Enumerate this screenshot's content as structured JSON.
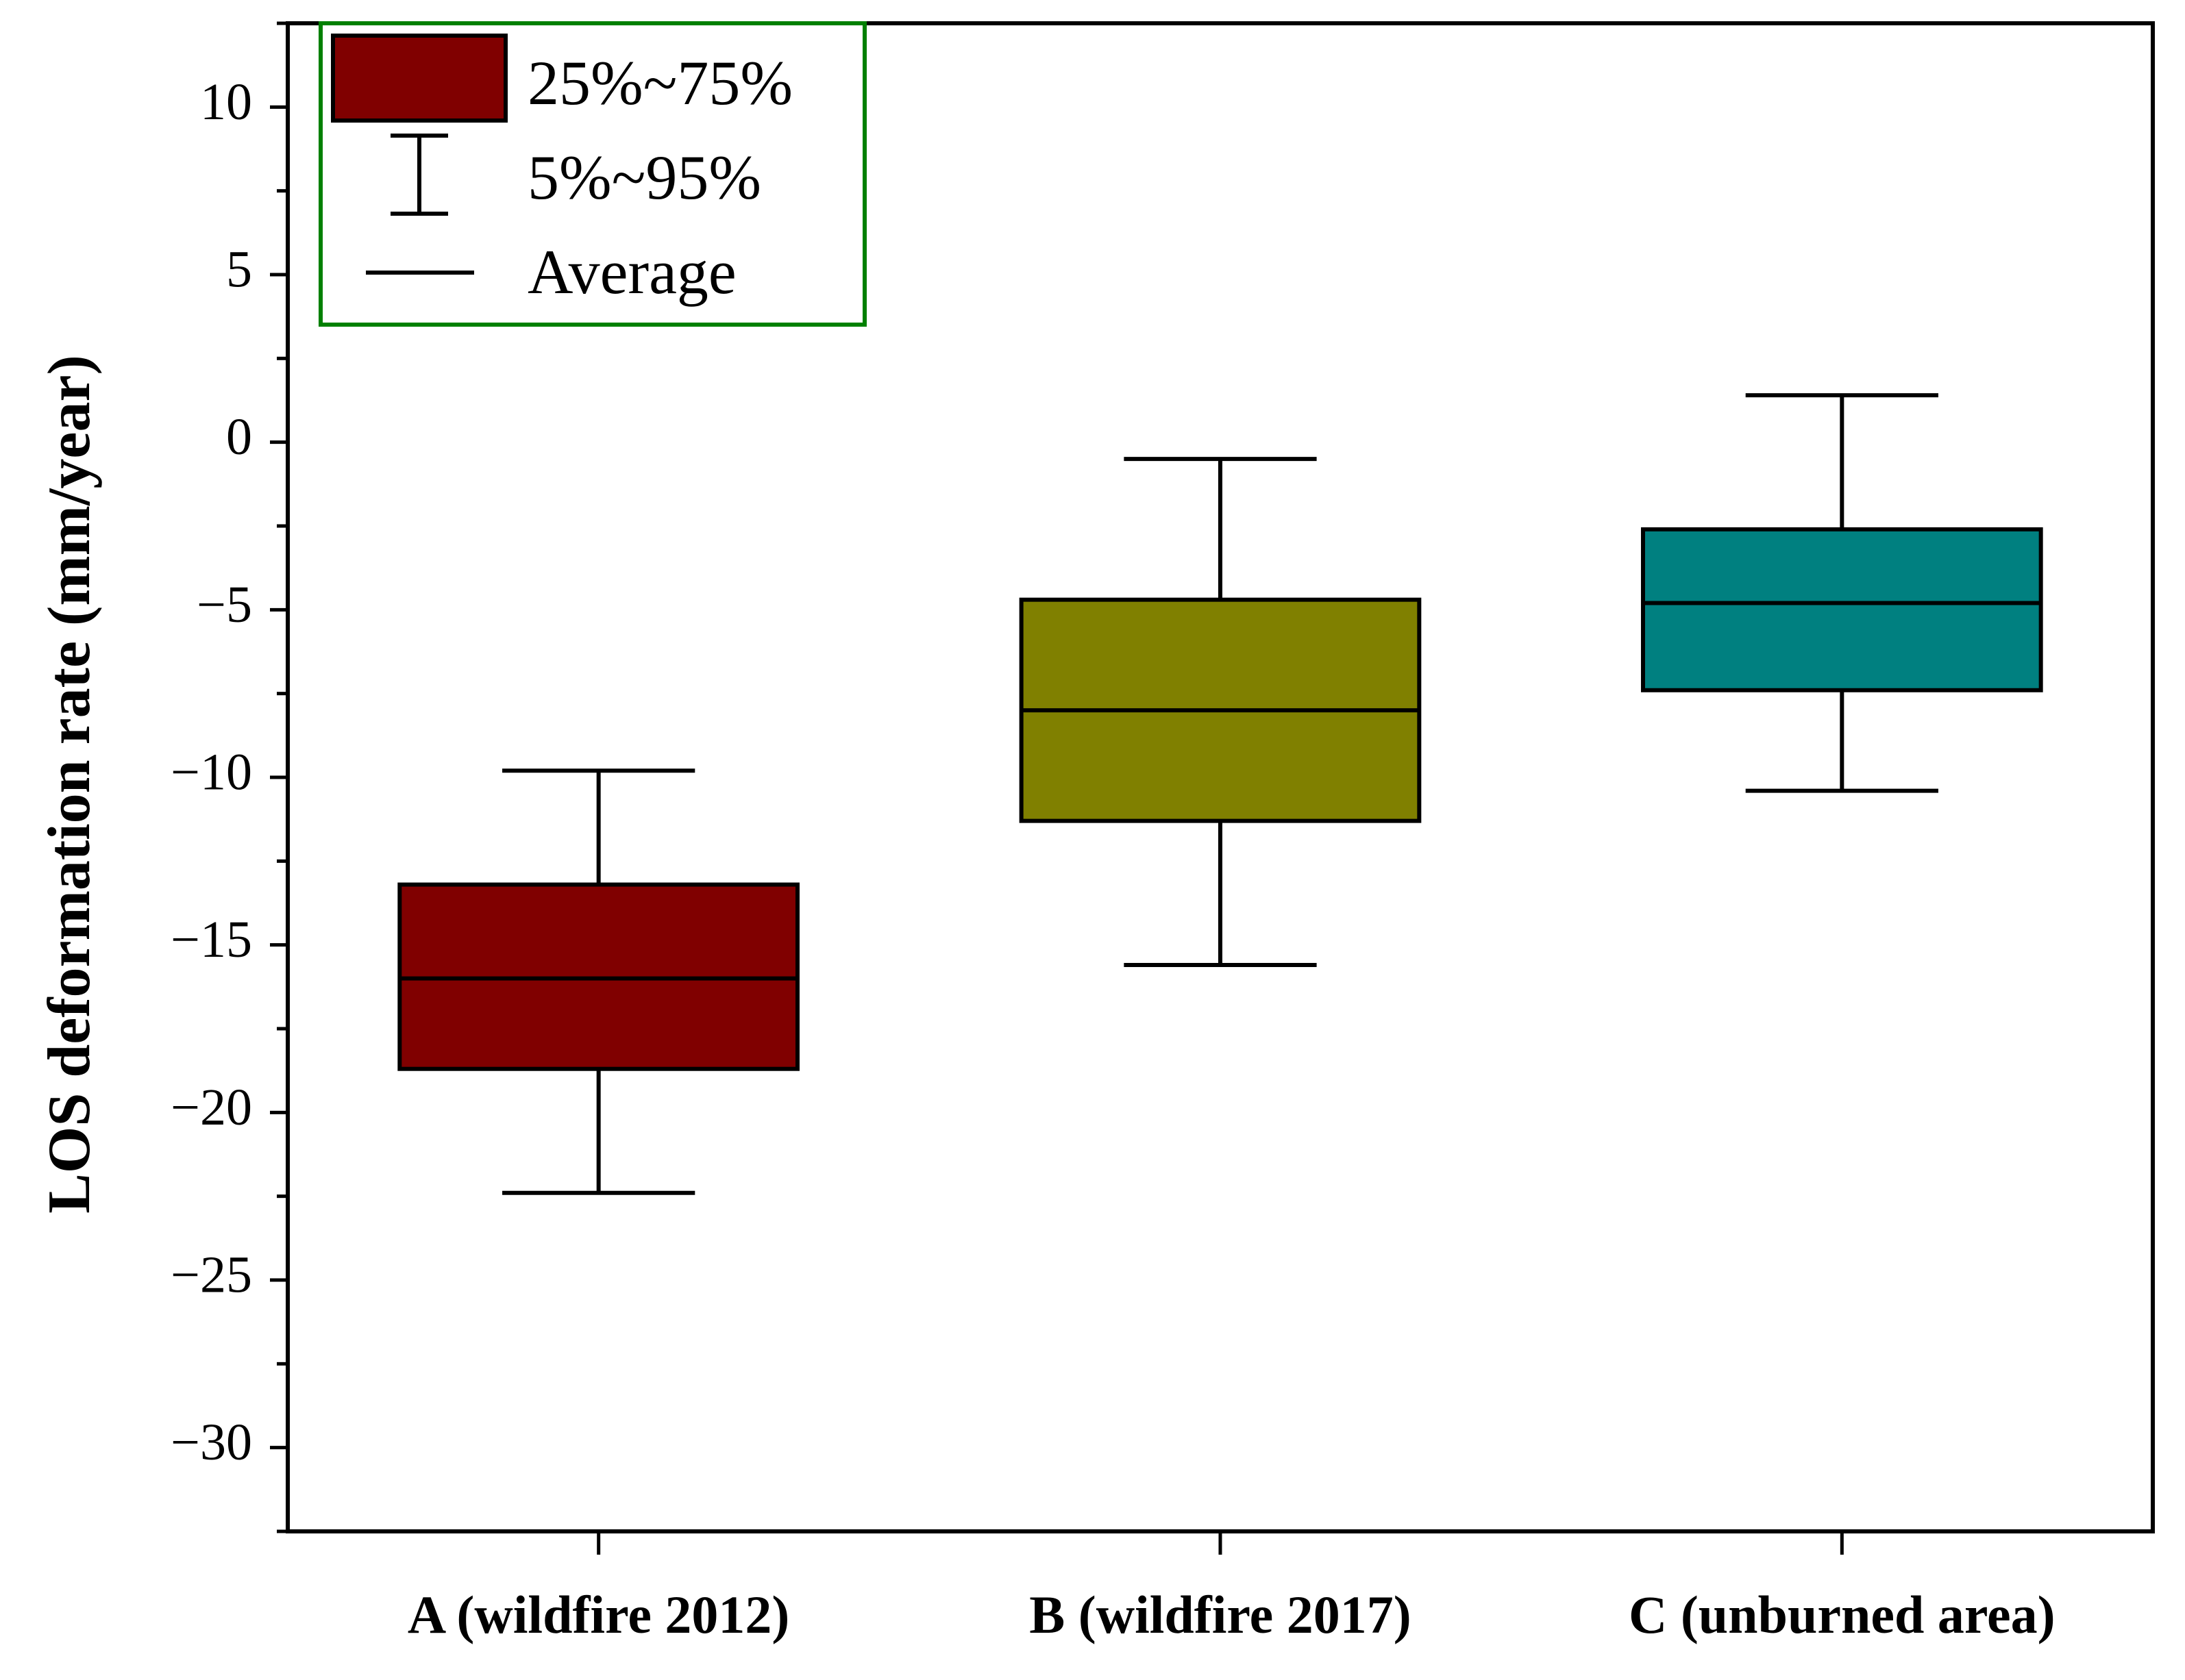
{
  "chart_data": {
    "type": "box",
    "title": "",
    "xlabel": "",
    "ylabel": "LOS deformation rate (mm/year)",
    "ylim": [
      -32.5,
      12.5
    ],
    "yticks": [
      10,
      5,
      0,
      -5,
      -10,
      -15,
      -20,
      -25,
      -30
    ],
    "ytick_labels": [
      "10",
      "5",
      "0",
      "−5",
      "−10",
      "−15",
      "−20",
      "−25",
      "−30"
    ],
    "categories": [
      "A (wildfire 2012)",
      "B (wildfire 2017)",
      "C (unburned area)"
    ],
    "series": [
      {
        "name": "A (wildfire 2012)",
        "color": "#800000",
        "p5": -22.4,
        "q1": -18.7,
        "mean": -16.0,
        "q3": -13.2,
        "p95": -9.8
      },
      {
        "name": "B (wildfire 2017)",
        "color": "#808000",
        "p5": -15.6,
        "q1": -11.3,
        "mean": -8.0,
        "q3": -4.7,
        "p95": -0.5
      },
      {
        "name": "C (unburned area)",
        "color": "#008080",
        "p5": -10.4,
        "q1": -7.4,
        "mean": -4.8,
        "q3": -2.6,
        "p95": 1.4
      }
    ],
    "legend": {
      "position": "top-left",
      "border_color": "#008000",
      "box_color": "#800000",
      "items": [
        "25%~75%",
        "5%~95%",
        "Average"
      ]
    },
    "grid": false
  }
}
